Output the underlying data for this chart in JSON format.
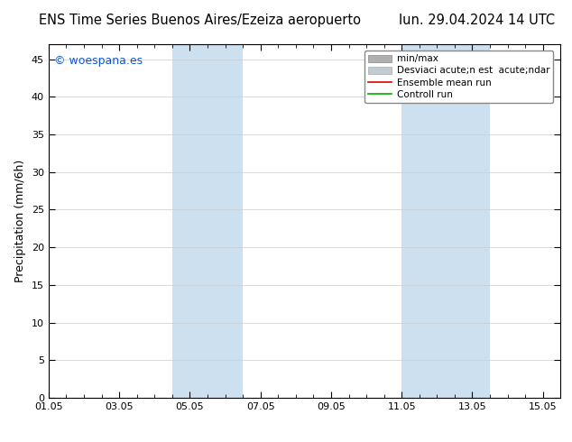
{
  "title_left": "ENS Time Series Buenos Aires/Ezeiza aeropuerto",
  "title_right": "lun. 29.04.2024 14 UTC",
  "ylabel": "Precipitation (mm/6h)",
  "watermark": "© woespana.es",
  "xstart_day": 0,
  "xend_day": 14.5,
  "xtick_labels": [
    "01.05",
    "03.05",
    "05.05",
    "07.05",
    "09.05",
    "11.05",
    "13.05",
    "15.05"
  ],
  "xtick_positions_days": [
    0,
    2,
    4,
    6,
    8,
    10,
    12,
    14
  ],
  "ylim": [
    0,
    47
  ],
  "yticks": [
    0,
    5,
    10,
    15,
    20,
    25,
    30,
    35,
    40,
    45
  ],
  "shaded_bands": [
    {
      "start_day": 3.5,
      "end_day": 5.5,
      "color": "#cde0f0",
      "alpha": 1.0
    },
    {
      "start_day": 10.0,
      "end_day": 12.5,
      "color": "#cde0f0",
      "alpha": 1.0
    }
  ],
  "bg_color": "#ffffff",
  "plot_bg_color": "#ffffff",
  "grid_color": "#cccccc",
  "title_fontsize": 10.5,
  "ylabel_fontsize": 9,
  "tick_fontsize": 8,
  "legend_fontsize": 7.5,
  "watermark_color": "#1155cc",
  "watermark_fontsize": 9,
  "legend_label1": "min/max",
  "legend_label2": "Desviaci acute;n est  acute;ndar",
  "legend_label3": "Ensemble mean run",
  "legend_label4": "Controll run",
  "legend_color1": "#b0b0b0",
  "legend_color2": "#c0ccd4",
  "legend_color3": "#dd0000",
  "legend_color4": "#00aa00"
}
